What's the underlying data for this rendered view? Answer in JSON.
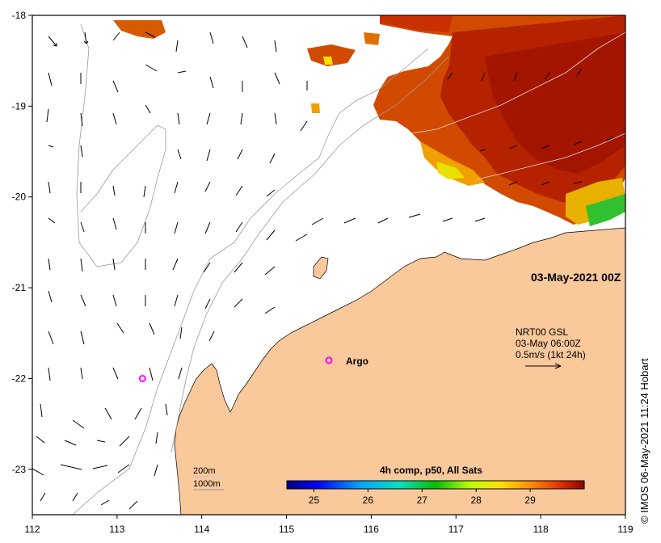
{
  "map": {
    "lon_range": [
      112,
      119
    ],
    "lat_range": [
      -23.5,
      -18
    ],
    "x_ticks": [
      "112",
      "113",
      "114",
      "115",
      "116",
      "117",
      "118",
      "119"
    ],
    "y_ticks": [
      "-18",
      "-19",
      "-20",
      "-21",
      "-22",
      "-23"
    ],
    "date_label": "03-May-2021 00Z",
    "scale_ref": {
      "line1": "NRT00 GSL",
      "line2": "03-May 06:00Z",
      "line3": "0.5m/s (1kt 24h)"
    },
    "argo_label": "Argo",
    "argo_points": [
      {
        "lon": 115.5,
        "lat": -21.8
      },
      {
        "lon": 113.3,
        "lat": -22.0
      }
    ],
    "depth_legend": [
      "200m",
      "1000m"
    ],
    "colorbar": {
      "title": "4h comp, p50, All Sats",
      "ticks": [
        "25",
        "26",
        "27",
        "28",
        "29"
      ],
      "range": [
        24.5,
        30.0
      ]
    },
    "credit": "© IMOS 06-May-2021 11:24 Hobart",
    "colors": {
      "land": "#f9c89b",
      "sst_hot": "#a81800",
      "sst_warm": "#d24a00",
      "sst_mid": "#f09000",
      "argo": "#ff00ff"
    }
  }
}
